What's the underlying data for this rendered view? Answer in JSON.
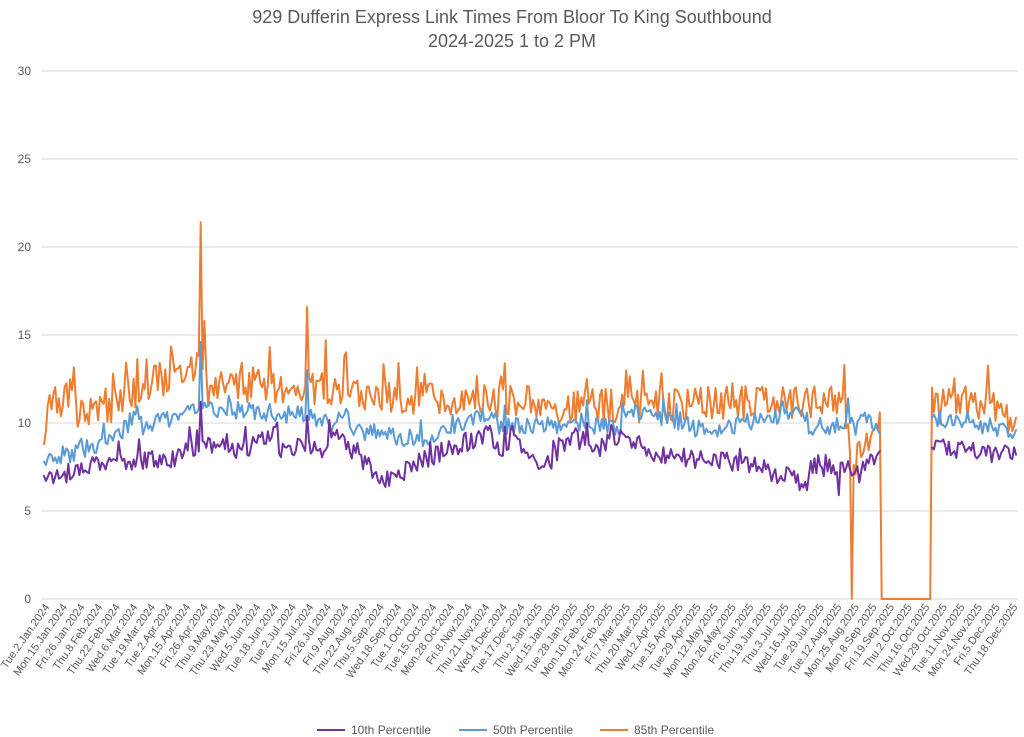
{
  "chart_data": {
    "type": "line",
    "title": "929 Dufferin Express Link Times From Bloor To King Southbound",
    "subtitle": "2024-2025 1 to 2 PM",
    "xlabel": "",
    "ylabel": "",
    "ylim": [
      0,
      30
    ],
    "yticks": [
      0,
      5,
      10,
      15,
      20,
      25,
      30
    ],
    "grid": true,
    "legend_position": "bottom",
    "x_start": "2024-01-02",
    "x_frequency": "weekdays",
    "x_count": 522,
    "xtick_labels": [
      "Tue.2.Jan.2024",
      "Mon.15.Jan.2024",
      "Fri.26.Jan.2024",
      "Thu.8.Feb.2024",
      "Thu.22.Feb.2024",
      "Wed.6.Mar.2024",
      "Tue.19.Mar.2024",
      "Tue.2.Apr.2024",
      "Mon.15.Apr.2024",
      "Fri.26.Apr.2024",
      "Thu.9.May.2024",
      "Thu.23.May.2024",
      "Wed.5.Jun.2024",
      "Tue.18.Jun.2024",
      "Tue.2.Jul.2024",
      "Mon.15.Jul.2024",
      "Fri.26.Jul.2024",
      "Fri.9.Aug.2024",
      "Thu.22.Aug.2024",
      "Thu.5.Sep.2024",
      "Wed.18.Sep.2024",
      "Tue.1.Oct.2024",
      "Tue.15.Oct.2024",
      "Mon.28.Oct.2024",
      "Fri.8.Nov.2024",
      "Thu.21.Nov.2024",
      "Wed.4.Dec.2024",
      "Tue.17.Dec.2024",
      "Thu.2.Jan.2025",
      "Wed.15.Jan.2025",
      "Tue.28.Jan.2025",
      "Mon.10.Feb.2025",
      "Mon.24.Feb.2025",
      "Fri.7.Mar.2025",
      "Thu.20.Mar.2025",
      "Wed.2.Apr.2025",
      "Tue.15.Apr.2025",
      "Tue.29.Apr.2025",
      "Mon.12.May.2025",
      "Mon.26.May.2025",
      "Fri.6.Jun.2025",
      "Thu.19.Jun.2025",
      "Thu.3.Jul.2025",
      "Wed.16.Jul.2025",
      "Tue.29.Jul.2025",
      "Tue.12.Aug.2025",
      "Mon.25.Aug.2025",
      "Mon.8.Sep.2025",
      "Fri.19.Sep.2025",
      "Thu.2.Oct.2025",
      "Thu.16.Oct.2025",
      "Wed.29.Oct.2025",
      "Tue.11.Nov.2025",
      "Mon.24.Nov.2025",
      "Fri.5.Dec.2025",
      "Thu.18.Dec.2025"
    ],
    "series": [
      {
        "name": "10th Percentile",
        "color": "#7030a0",
        "key_points": [
          {
            "x": "2024-01-02",
            "y": 7.0
          },
          {
            "x": "2024-01-15",
            "y": 6.9
          },
          {
            "x": "2024-02-08",
            "y": 7.8
          },
          {
            "x": "2024-03-06",
            "y": 7.8
          },
          {
            "x": "2024-04-15",
            "y": 8.0
          },
          {
            "x": "2024-04-29",
            "y": 11.2
          },
          {
            "x": "2024-05-23",
            "y": 8.2
          },
          {
            "x": "2024-07-17",
            "y": 10.4
          },
          {
            "x": "2024-08-22",
            "y": 8.3
          },
          {
            "x": "2024-09-12",
            "y": 6.6
          },
          {
            "x": "2024-10-15",
            "y": 8.0
          },
          {
            "x": "2024-12-12",
            "y": 9.8
          },
          {
            "x": "2025-01-10",
            "y": 7.5
          },
          {
            "x": "2025-02-12",
            "y": 10.0
          },
          {
            "x": "2025-04-15",
            "y": 8.0
          },
          {
            "x": "2025-06-10",
            "y": 7.8
          },
          {
            "x": "2025-08-20",
            "y": 5.9
          },
          {
            "x": "2025-09-19",
            "y": 8.4
          },
          {
            "x": "2025-10-29",
            "y": 8.6
          },
          {
            "x": "2025-12-31",
            "y": 8.2
          }
        ]
      },
      {
        "name": "50th Percentile",
        "color": "#5b9bd5",
        "key_points": [
          {
            "x": "2024-01-02",
            "y": 7.8
          },
          {
            "x": "2024-02-22",
            "y": 9.0
          },
          {
            "x": "2024-04-29",
            "y": 14.6
          },
          {
            "x": "2024-07-17",
            "y": 13.0
          },
          {
            "x": "2024-08-22",
            "y": 9.6
          },
          {
            "x": "2024-10-15",
            "y": 9.0
          },
          {
            "x": "2024-12-12",
            "y": 11.0
          },
          {
            "x": "2025-02-12",
            "y": 11.3
          },
          {
            "x": "2025-05-15",
            "y": 9.5
          },
          {
            "x": "2025-08-27",
            "y": 11.4
          },
          {
            "x": "2025-09-19",
            "y": 9.4
          },
          {
            "x": "2025-10-29",
            "y": 10.3
          },
          {
            "x": "2025-12-31",
            "y": 9.6
          }
        ]
      },
      {
        "name": "85th Percentile",
        "color": "#ed7d31",
        "key_points": [
          {
            "x": "2024-01-02",
            "y": 8.8
          },
          {
            "x": "2024-01-04",
            "y": 11.0
          },
          {
            "x": "2024-02-22",
            "y": 12.8
          },
          {
            "x": "2024-04-29",
            "y": 21.4
          },
          {
            "x": "2024-05-01",
            "y": 15.8
          },
          {
            "x": "2024-07-17",
            "y": 16.6
          },
          {
            "x": "2024-07-31",
            "y": 14.7
          },
          {
            "x": "2024-12-12",
            "y": 13.4
          },
          {
            "x": "2025-02-12",
            "y": 12.5
          },
          {
            "x": "2025-08-25",
            "y": 13.3
          },
          {
            "x": "2025-08-29",
            "y": 0.0
          },
          {
            "x": "2025-09-19",
            "y": 10.6
          },
          {
            "x": "2025-09-22",
            "y": 0.0
          },
          {
            "x": "2025-10-27",
            "y": 0.0
          },
          {
            "x": "2025-10-29",
            "y": 12.0
          },
          {
            "x": "2025-12-31",
            "y": 10.3
          }
        ]
      }
    ],
    "gap": {
      "from": "2025-09-22",
      "to": "2025-10-28",
      "note": "10th and 50th percentile missing; 85th percentile shown as 0"
    }
  },
  "legend": {
    "items": [
      {
        "label": "10th Percentile",
        "color": "#7030a0"
      },
      {
        "label": "50th Percentile",
        "color": "#5b9bd5"
      },
      {
        "label": "85th Percentile",
        "color": "#ed7d31"
      }
    ]
  }
}
